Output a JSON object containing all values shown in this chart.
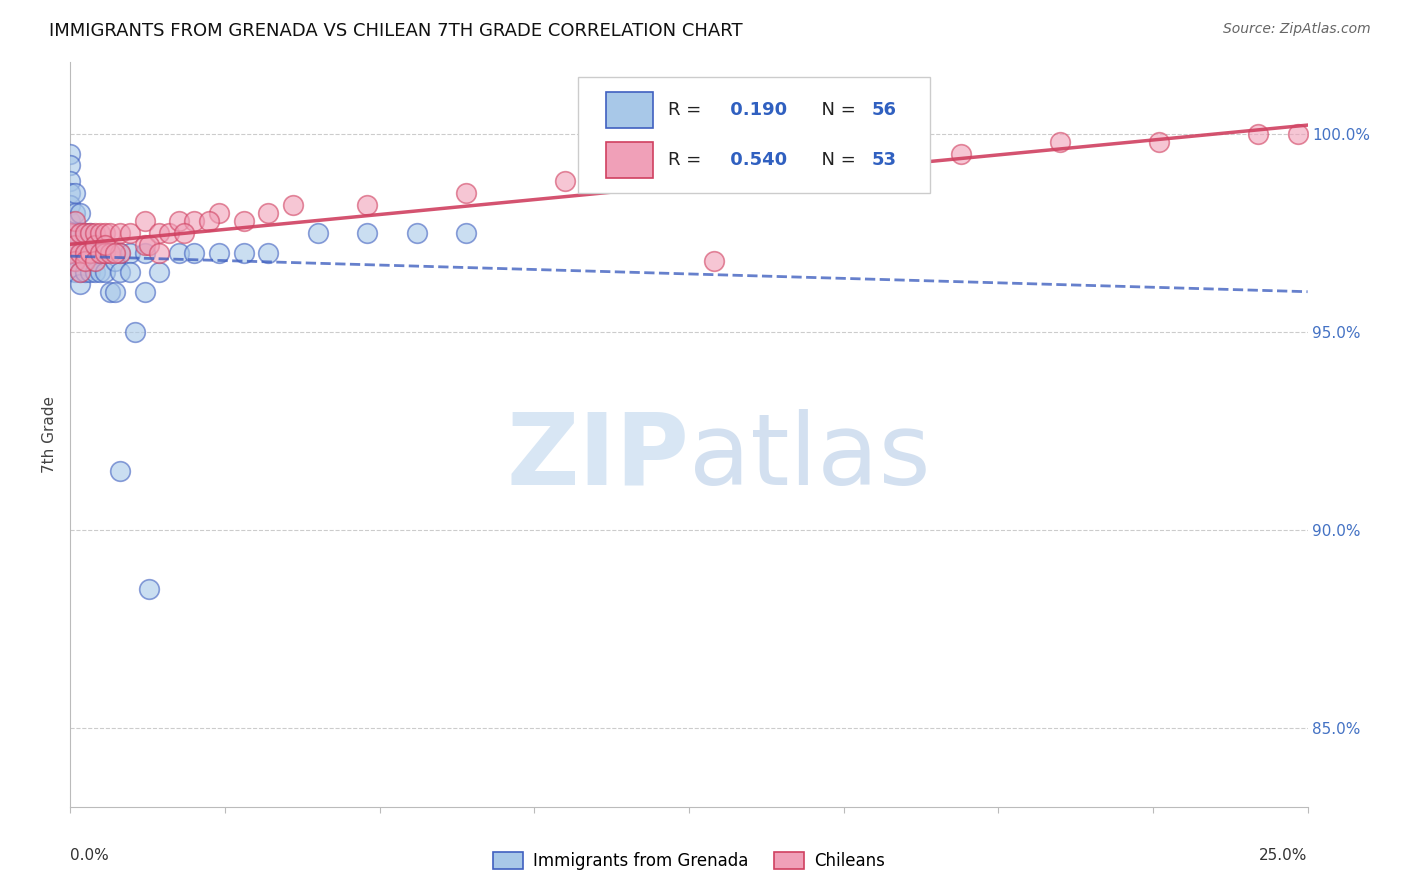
{
  "title": "IMMIGRANTS FROM GRENADA VS CHILEAN 7TH GRADE CORRELATION CHART",
  "source": "Source: ZipAtlas.com",
  "ylabel": "7th Grade",
  "legend_label1": "Immigrants from Grenada",
  "legend_label2": "Chileans",
  "R1": 0.19,
  "N1": 56,
  "R2": 0.54,
  "N2": 53,
  "color_blue": "#A8C8E8",
  "color_pink": "#F0A0B8",
  "line_blue": "#4060C0",
  "line_pink": "#D04060",
  "bg_color": "#FFFFFF",
  "grid_color": "#CCCCCC",
  "xlim": [
    0.0,
    0.25
  ],
  "ylim": [
    83.0,
    101.8
  ],
  "yticks": [
    85.0,
    90.0,
    95.0,
    100.0
  ],
  "blue_scatter_x": [
    0.0,
    0.0,
    0.0,
    0.0,
    0.0,
    0.0,
    0.0,
    0.0,
    0.001,
    0.001,
    0.001,
    0.001,
    0.001,
    0.001,
    0.002,
    0.002,
    0.002,
    0.002,
    0.002,
    0.003,
    0.003,
    0.003,
    0.003,
    0.004,
    0.004,
    0.004,
    0.005,
    0.005,
    0.005,
    0.006,
    0.006,
    0.007,
    0.007,
    0.008,
    0.008,
    0.009,
    0.009,
    0.01,
    0.01,
    0.012,
    0.012,
    0.015,
    0.015,
    0.018,
    0.022,
    0.025,
    0.03,
    0.035,
    0.04,
    0.05,
    0.06,
    0.07,
    0.08,
    0.01,
    0.013,
    0.016
  ],
  "blue_scatter_y": [
    99.5,
    99.2,
    98.8,
    98.5,
    98.2,
    97.8,
    97.5,
    97.0,
    98.5,
    98.0,
    97.5,
    97.0,
    96.8,
    96.5,
    98.0,
    97.5,
    97.0,
    96.5,
    96.2,
    97.5,
    97.0,
    96.8,
    96.5,
    97.5,
    97.0,
    96.5,
    97.2,
    96.8,
    96.5,
    97.0,
    96.5,
    97.0,
    96.5,
    97.0,
    96.0,
    96.8,
    96.0,
    97.0,
    96.5,
    97.0,
    96.5,
    97.0,
    96.0,
    96.5,
    97.0,
    97.0,
    97.0,
    97.0,
    97.0,
    97.5,
    97.5,
    97.5,
    97.5,
    91.5,
    95.0,
    88.5
  ],
  "pink_scatter_x": [
    0.0,
    0.0,
    0.001,
    0.001,
    0.001,
    0.002,
    0.002,
    0.002,
    0.003,
    0.003,
    0.003,
    0.004,
    0.004,
    0.005,
    0.005,
    0.005,
    0.006,
    0.006,
    0.007,
    0.007,
    0.008,
    0.008,
    0.01,
    0.01,
    0.012,
    0.015,
    0.015,
    0.018,
    0.02,
    0.022,
    0.025,
    0.03,
    0.035,
    0.04,
    0.045,
    0.06,
    0.08,
    0.1,
    0.12,
    0.14,
    0.16,
    0.18,
    0.2,
    0.22,
    0.24,
    0.248,
    0.007,
    0.009,
    0.016,
    0.018,
    0.023,
    0.028,
    0.13
  ],
  "pink_scatter_y": [
    97.5,
    97.0,
    97.8,
    97.2,
    96.8,
    97.5,
    97.0,
    96.5,
    97.5,
    97.0,
    96.8,
    97.5,
    97.0,
    97.5,
    97.2,
    96.8,
    97.5,
    97.0,
    97.5,
    97.0,
    97.5,
    97.0,
    97.5,
    97.0,
    97.5,
    97.8,
    97.2,
    97.5,
    97.5,
    97.8,
    97.8,
    98.0,
    97.8,
    98.0,
    98.2,
    98.2,
    98.5,
    98.8,
    99.0,
    99.2,
    99.5,
    99.5,
    99.8,
    99.8,
    100.0,
    100.0,
    97.2,
    97.0,
    97.2,
    97.0,
    97.5,
    97.8,
    96.8
  ]
}
